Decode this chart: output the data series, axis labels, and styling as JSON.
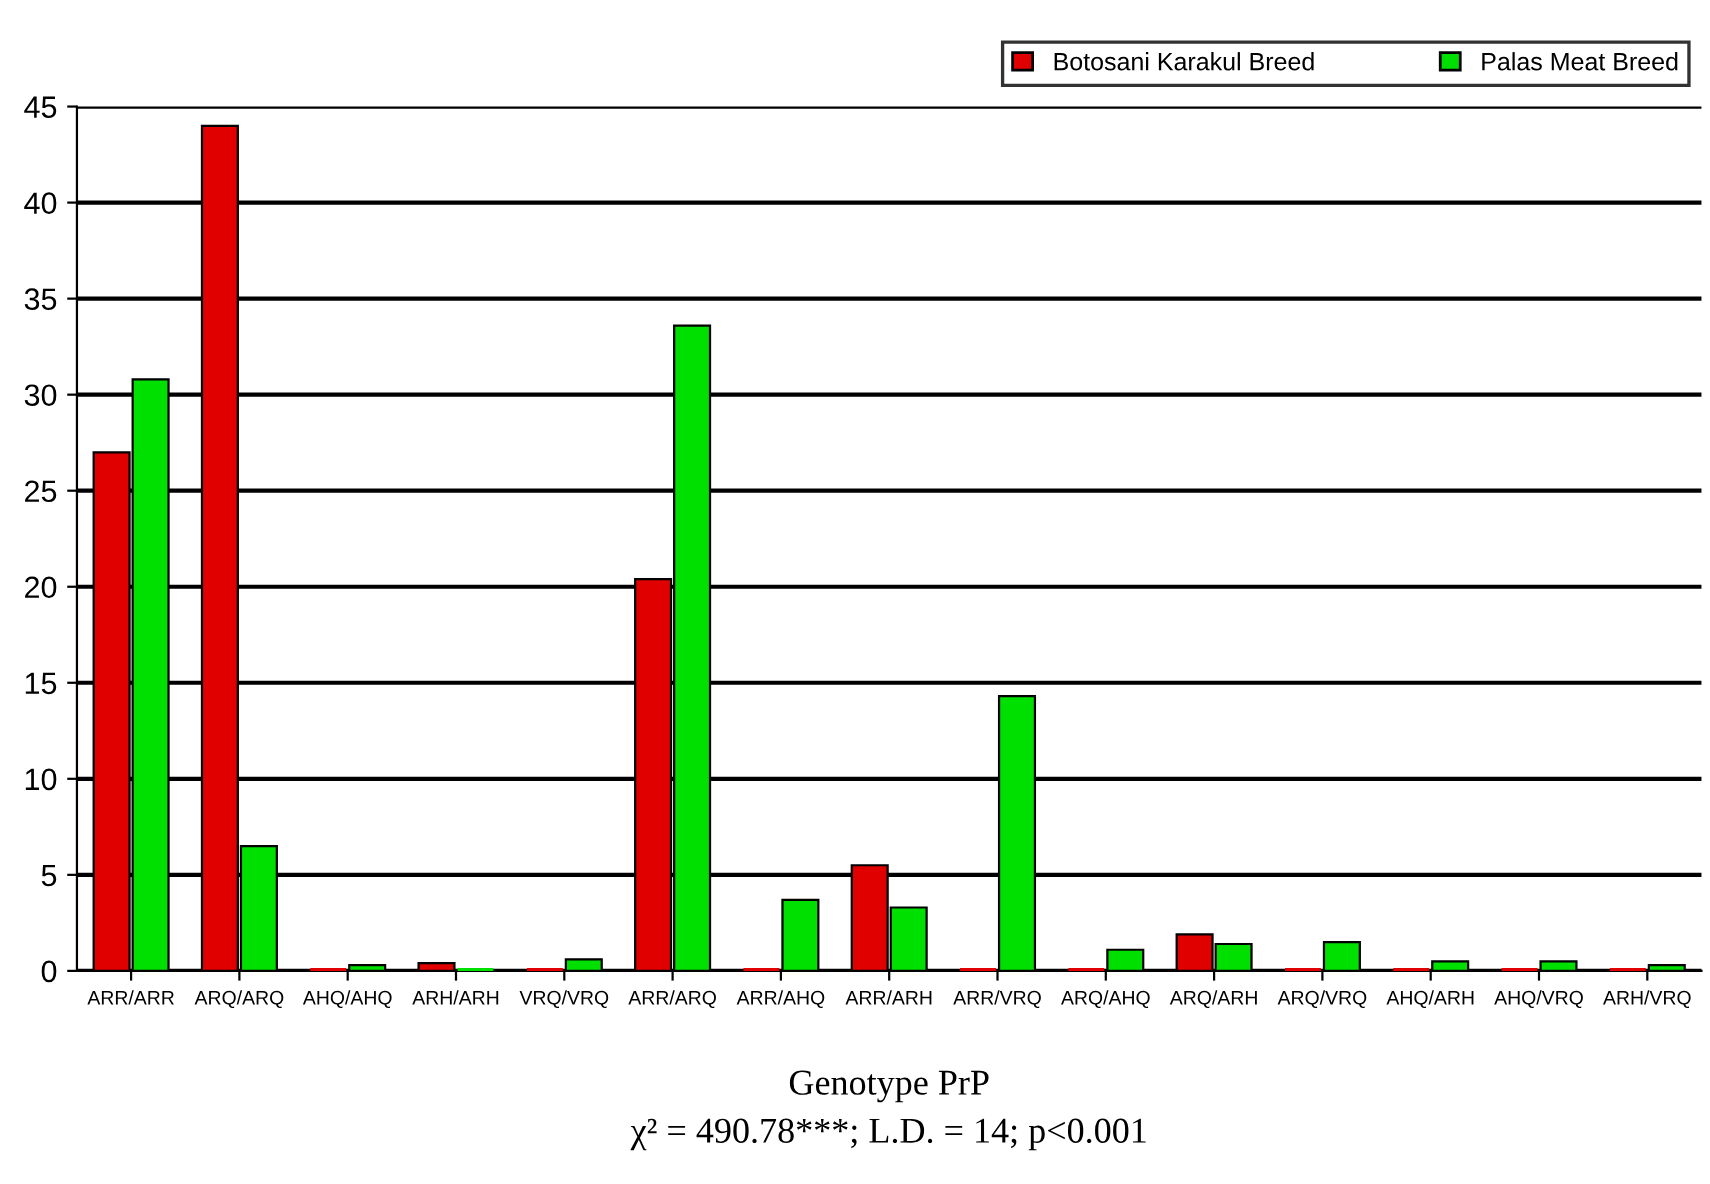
{
  "chart_data": {
    "type": "bar",
    "xlabel": "Genotype PrP",
    "annotations": [
      "χ² = 490.78***; L.D. = 14; p<0.001"
    ],
    "categories": [
      "ARR/ARR",
      "ARQ/ARQ",
      "AHQ/AHQ",
      "ARH/ARH",
      "VRQ/VRQ",
      "ARR/ARQ",
      "ARR/AHQ",
      "ARR/ARH",
      "ARR/VRQ",
      "ARQ/AHQ",
      "ARQ/ARH",
      "ARQ/VRQ",
      "AHQ/ARH",
      "AHQ/VRQ",
      "ARH/VRQ"
    ],
    "series": [
      {
        "name": "Botosani Karakul Breed",
        "color": "#e00000",
        "values": [
          27.0,
          44.0,
          0,
          0.4,
          0,
          20.4,
          0,
          5.5,
          0,
          0,
          1.9,
          0,
          0,
          0,
          0
        ]
      },
      {
        "name": "Palas Meat Breed",
        "color": "#00e000",
        "values": [
          30.8,
          6.5,
          0.3,
          0,
          0.6,
          33.6,
          3.7,
          3.3,
          14.3,
          1.1,
          1.4,
          1.5,
          0.5,
          0.5,
          0.3
        ]
      }
    ],
    "ylim": [
      0,
      45
    ],
    "yticks": [
      0,
      5,
      10,
      15,
      20,
      25,
      30,
      35,
      40,
      45
    ],
    "grid": "y",
    "legend": "top right"
  }
}
